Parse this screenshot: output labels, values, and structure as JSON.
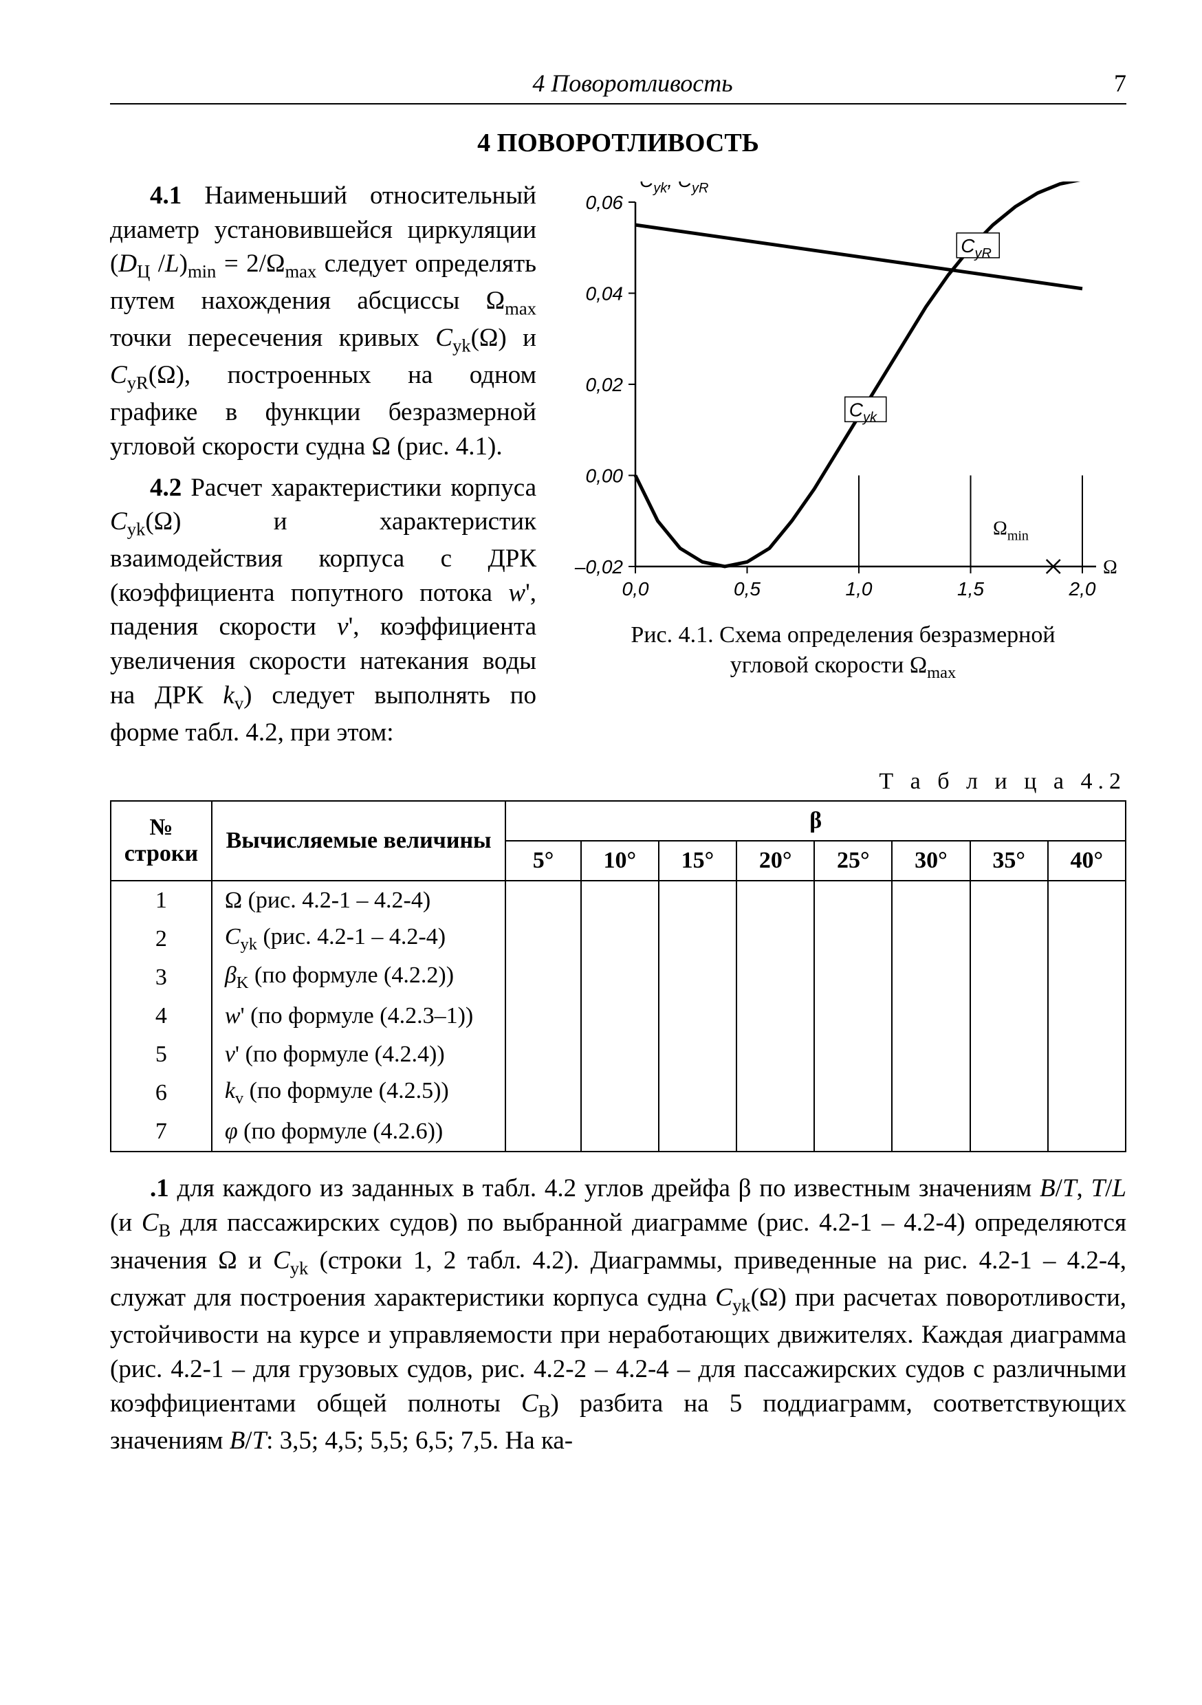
{
  "header": {
    "running_title": "4 Поворотливость",
    "page_number": "7"
  },
  "section_title": "4 ПОВОРОТЛИВОСТЬ",
  "para41_num": "4.1",
  "para41_a": " Наименьший относительный диаметр установившейся циркуляции (",
  "para41_dpl": "D",
  "para41_dpl_sub": "Ц",
  "para41_b": " /",
  "para41_L": "L",
  "para41_c": ")",
  "para41_min": "min",
  "para41_d": " = 2/Ω",
  "para41_max": "max",
  "para41_e": " следует определять путем нахождения абсциссы Ω",
  "para41_max2": "max",
  "para41_f": " точки пересечения кривых ",
  "para41_cyk": "C",
  "para41_cyk_sub": "yk",
  "para41_g": "(Ω) и ",
  "para41_cyr": "C",
  "para41_cyr_sub": "yR",
  "para41_h": "(Ω), построенных на одном графике в функции безразмерной угловой скорости судна Ω (рис. 4.1).",
  "para42_num": "4.2",
  "para42_a": " Расчет характеристики корпуса ",
  "para42_b": "(Ω) и характеристик взаимодействия корпуса с ДРК (коэффициента попутного потока ",
  "para42_w": "w",
  "para42_c": "', падения скорости ",
  "para42_v": "ν",
  "para42_d": "', коэффициента увеличения скорости натекания воды на ДРК ",
  "para42_kv": "k",
  "para42_kv_sub": "v",
  "para42_e": ") следует выполнять по форме табл. 4.2, при этом:",
  "figure": {
    "caption_a": "Рис. 4.1. Схема определения безразмерной",
    "caption_b": "угловой скорости Ω",
    "caption_sub": "max",
    "ylabel": "Cyk, CyR",
    "y_ticks": [
      "0,06",
      "0,04",
      "0,02",
      "0,00",
      "–0,02"
    ],
    "x_ticks": [
      "0,0",
      "0,5",
      "1,0",
      "1,5",
      "2,0"
    ],
    "xlim": [
      0.0,
      2.0
    ],
    "ylim": [
      -0.02,
      0.06
    ],
    "label_cyr": "CyR",
    "label_cyk": "Cyk",
    "label_omega_min": "Ωmin",
    "label_omega": "Ω",
    "curve_cyk": [
      [
        0.0,
        0.0
      ],
      [
        0.1,
        -0.01
      ],
      [
        0.2,
        -0.016
      ],
      [
        0.3,
        -0.019
      ],
      [
        0.4,
        -0.02
      ],
      [
        0.5,
        -0.019
      ],
      [
        0.6,
        -0.016
      ],
      [
        0.7,
        -0.01
      ],
      [
        0.8,
        -0.003
      ],
      [
        0.9,
        0.005
      ],
      [
        1.0,
        0.013
      ],
      [
        1.1,
        0.021
      ],
      [
        1.2,
        0.029
      ],
      [
        1.3,
        0.037
      ],
      [
        1.4,
        0.044
      ],
      [
        1.5,
        0.05
      ],
      [
        1.6,
        0.055
      ],
      [
        1.7,
        0.059
      ],
      [
        1.8,
        0.062
      ],
      [
        1.9,
        0.064
      ],
      [
        2.0,
        0.065
      ]
    ],
    "line_cyr_y": 0.05,
    "ticks_below": [
      1.0,
      1.5,
      2.0
    ],
    "cross1": [
      1.5,
      0.05
    ],
    "cross2": [
      1.87,
      -0.02
    ],
    "colors": {
      "axis": "#000000",
      "grid": "#000000",
      "curve": "#000000",
      "bg": "#ffffff"
    },
    "axis_font_size": 28,
    "line_width_curve": 5,
    "line_width_axis": 2.5,
    "tick_dash": "none"
  },
  "table": {
    "label": "Т а б л и ц а  4.2",
    "head_row1_col1": "№",
    "head_row2_col1": "строки",
    "head_row1_col2": "Вычисляемые величины",
    "head_row1_col3": "β",
    "beta_cols": [
      "5°",
      "10°",
      "15°",
      "20°",
      "25°",
      "30°",
      "35°",
      "40°"
    ],
    "rows": [
      {
        "n": "1",
        "t": "Ω (рис. 4.2-1 – 4.2-4)"
      },
      {
        "n": "2",
        "t": "C_yk (рис. 4.2-1 – 4.2-4)",
        "sym": "C",
        "sub": "yk",
        "rest": " (рис. 4.2-1 – 4.2-4)"
      },
      {
        "n": "3",
        "t": "β_K (по формуле (4.2.2))",
        "sym": "β",
        "sub": "K",
        "rest": " (по формуле (4.2.2))"
      },
      {
        "n": "4",
        "t": "w' (по формуле (4.2.3–1))",
        "sym": "w",
        "prime": true,
        "rest": " (по формуле (4.2.3–1))"
      },
      {
        "n": "5",
        "t": "ν' (по формуле (4.2.4))",
        "sym": "ν",
        "prime": true,
        "rest": " (по формуле (4.2.4))"
      },
      {
        "n": "6",
        "t": "k_v (по формуле (4.2.5))",
        "sym": "k",
        "sub": "v",
        "rest": " (по формуле (4.2.5))"
      },
      {
        "n": "7",
        "t": "φ (по формуле (4.2.6))",
        "sym": "φ",
        "rest": " (по формуле (4.2.6))"
      }
    ]
  },
  "para_bottom_num": ".1",
  "para_bottom": " для каждого из заданных в табл. 4.2 углов дрейфа β по известным значениям B/T, T/L (и C_B для пассажирских судов) по выбранной диаграмме (рис.  4.2-1 – 4.2-4) определяются значения Ω и C_yk (строки 1, 2 табл. 4.2). Диаграммы, приведенные на рис. 4.2-1 – 4.2-4, служат для построения характеристики корпуса судна C_yk(Ω) при расчетах поворотливости, устойчивости на курсе и управляемости при неработающих движителях. Каждая диаграмма (рис. 4.2-1 – для грузовых судов, рис.  4.2-2 – 4.2-4 – для пассажирских судов с различными коэффициентами общей полноты C_B) разбита на 5 поддиаграмм, соответствующих значениям B/T: 3,5; 4,5; 5,5; 6,5; 7,5. На ка-"
}
